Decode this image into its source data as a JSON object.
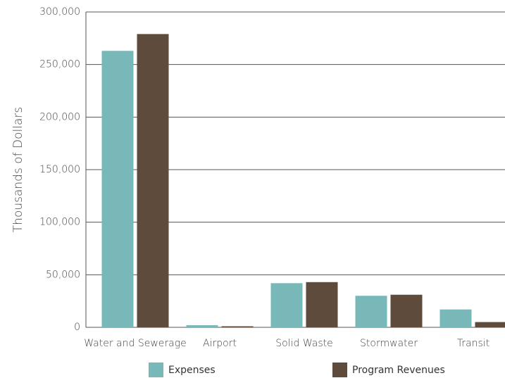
{
  "chart_data": {
    "type": "bar",
    "y_label": "Thousands of Dollars",
    "categories": [
      "Water and Sewerage",
      "Airport",
      "Solid Waste",
      "Stormwater",
      "Transit"
    ],
    "series": [
      {
        "name": "Expenses",
        "color": "#79b8b8",
        "values": [
          263000,
          2000,
          42000,
          30000,
          17000
        ]
      },
      {
        "name": "Program Revenues",
        "color": "#5f4b3b",
        "values": [
          279000,
          1000,
          43000,
          31000,
          5000
        ]
      }
    ],
    "ylim": [
      0,
      300000
    ],
    "yticks": [
      0,
      {
        "value": 50000,
        "label": "50,000"
      },
      {
        "value": 100000,
        "label": "100,000"
      },
      {
        "value": 150000,
        "label": "150,000"
      },
      {
        "value": 200000,
        "label": "200,000"
      },
      {
        "value": 250000,
        "label": "250,000"
      },
      {
        "value": 300000,
        "label": "300,000"
      }
    ],
    "grid": true,
    "legend": "bottom"
  }
}
